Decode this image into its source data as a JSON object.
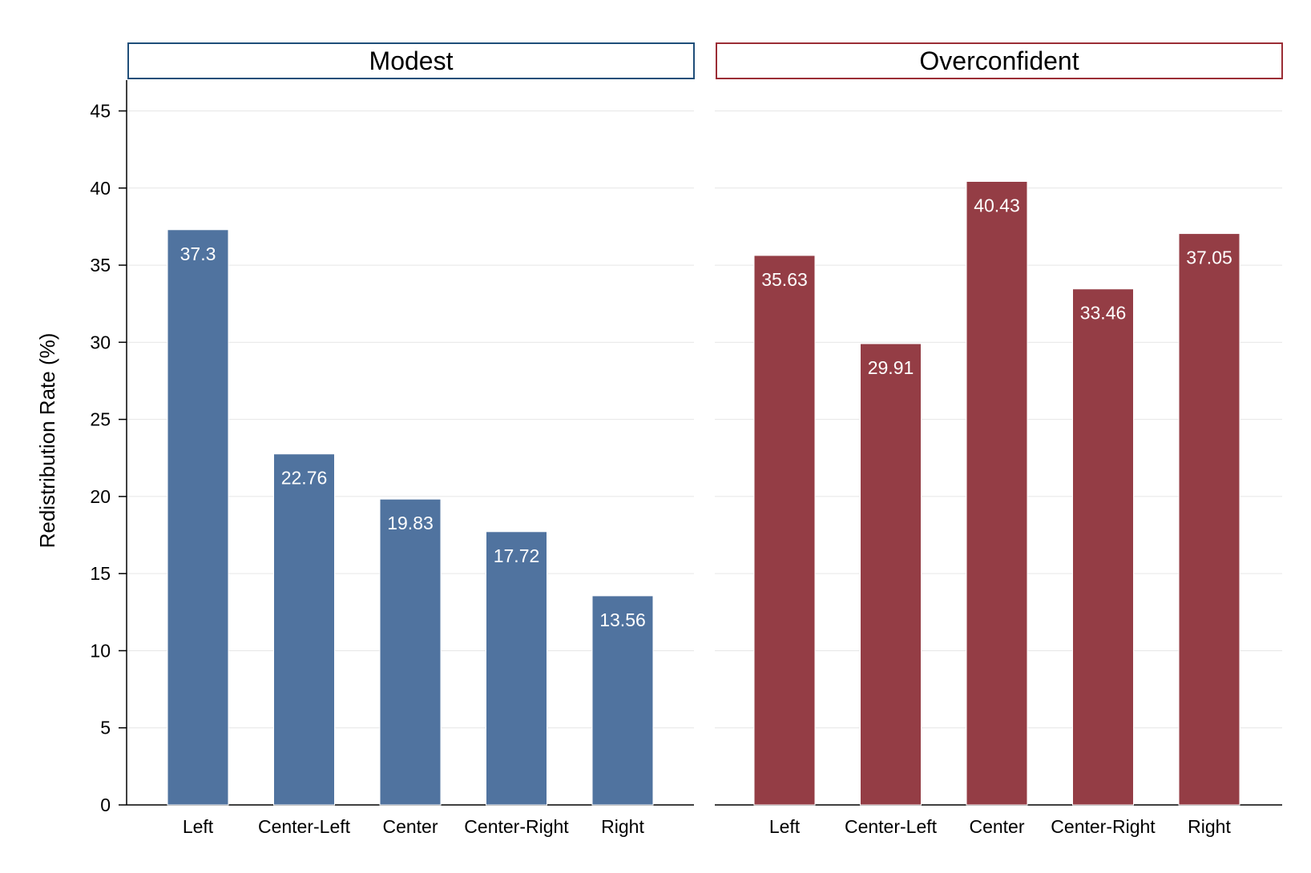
{
  "chart_data": {
    "type": "bar",
    "ylabel": "Redistribution Rate (%)",
    "ylim": [
      0,
      47
    ],
    "yticks": [
      0,
      5,
      10,
      15,
      20,
      25,
      30,
      35,
      40,
      45
    ],
    "grid": true,
    "categories": [
      "Left",
      "Center-Left",
      "Center",
      "Center-Right",
      "Right"
    ],
    "panels": [
      {
        "title": "Modest",
        "color": "#50739f",
        "frame_color": "#1f4e79",
        "values": [
          37.3,
          22.76,
          19.83,
          17.72,
          13.56
        ],
        "labels": [
          "37.3",
          "22.76",
          "19.83",
          "17.72",
          "13.56"
        ]
      },
      {
        "title": "Overconfident",
        "color": "#943d45",
        "frame_color": "#9b2d35",
        "values": [
          35.63,
          29.91,
          40.43,
          33.46,
          37.05
        ],
        "labels": [
          "35.63",
          "29.91",
          "40.43",
          "33.46",
          "37.05"
        ]
      }
    ]
  }
}
